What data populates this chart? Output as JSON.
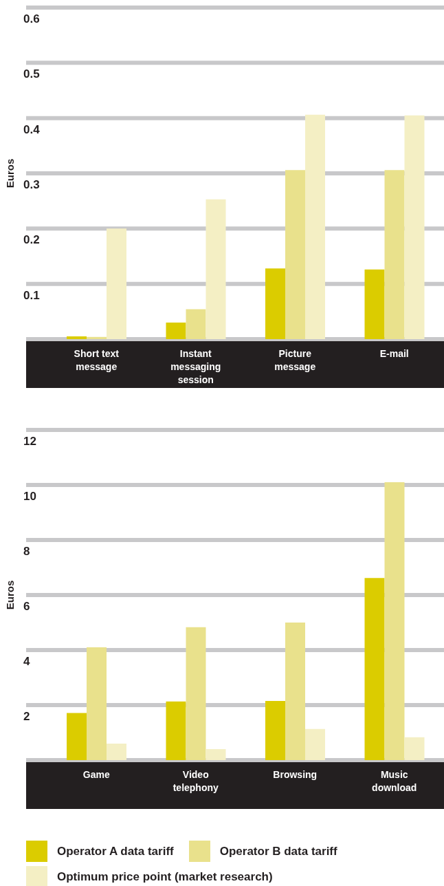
{
  "chart_data": [
    {
      "type": "bar",
      "ylabel": "Euros",
      "categories": [
        "Short text message",
        "Instant messaging session",
        "Picture message",
        "E-mail"
      ],
      "series": [
        {
          "color": "#dbcc00",
          "values": [
            0.005,
            0.03,
            0.128,
            0.126
          ]
        },
        {
          "color": "#e9e18c",
          "values": [
            0.004,
            0.054,
            0.306,
            0.306
          ]
        },
        {
          "color": "#f4efc4",
          "values": [
            0.2,
            0.253,
            0.406,
            0.405
          ]
        }
      ],
      "ylim": [
        0,
        0.6
      ],
      "yticks": [
        0.1,
        0.2,
        0.3,
        0.4,
        0.5,
        0.6
      ],
      "grid": "y"
    },
    {
      "type": "bar",
      "ylabel": "Euros",
      "categories": [
        "Game",
        "Video telephony",
        "Browsing",
        "Music download"
      ],
      "series": [
        {
          "name": "Operator A data tariff",
          "color": "#dbcc00",
          "values": [
            1.71,
            2.13,
            2.15,
            6.62
          ]
        },
        {
          "name": "Operator B data tariff",
          "color": "#e9e18c",
          "values": [
            4.1,
            4.83,
            5.0,
            10.1
          ]
        },
        {
          "name": "Optimum price point (market research)",
          "color": "#f4efc4",
          "values": [
            0.6,
            0.4,
            1.13,
            0.83
          ]
        }
      ],
      "ylim": [
        0,
        12
      ],
      "yticks": [
        2,
        4,
        6,
        8,
        10,
        12
      ],
      "grid": "y",
      "legend": "bottom"
    }
  ]
}
